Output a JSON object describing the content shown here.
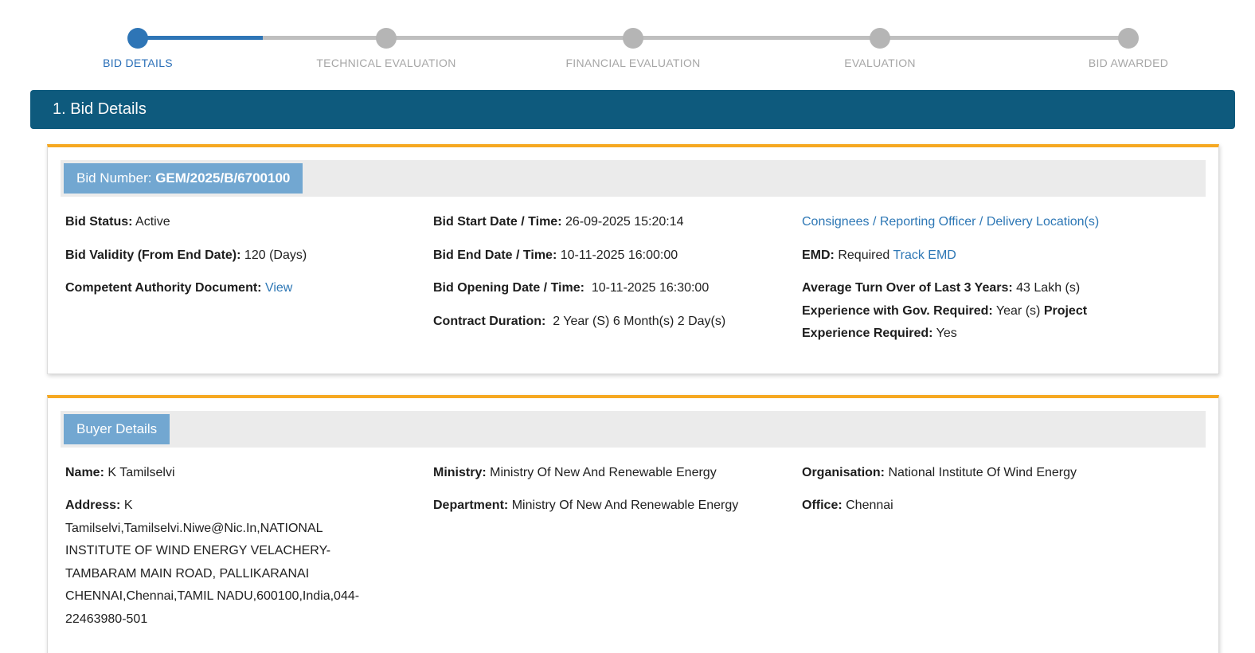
{
  "stepper": {
    "steps": [
      {
        "label": "BID DETAILS",
        "state": "active"
      },
      {
        "label": "TECHNICAL EVALUATION",
        "state": "inactive"
      },
      {
        "label": "FINANCIAL EVALUATION",
        "state": "inactive"
      },
      {
        "label": "EVALUATION",
        "state": "inactive"
      },
      {
        "label": "BID AWARDED",
        "state": "inactive"
      }
    ]
  },
  "section_header": {
    "title": "1. Bid Details"
  },
  "bid_card": {
    "badge_label": "Bid Number: ",
    "badge_value": "GEM/2025/B/6700100",
    "bid_status": {
      "label": "Bid Status:",
      "value": "Active"
    },
    "bid_validity": {
      "label": "Bid Validity (From End Date):",
      "value": "120 (Days)"
    },
    "competent_authority": {
      "label": "Competent Authority Document:",
      "link": "View"
    },
    "bid_start": {
      "label": "Bid Start Date / Time:",
      "value": "26-09-2025 15:20:14"
    },
    "bid_end": {
      "label": "Bid End Date / Time:",
      "value": "10-11-2025 16:00:00"
    },
    "bid_opening": {
      "label": "Bid Opening Date / Time:",
      "value": "10-11-2025 16:30:00"
    },
    "contract_duration": {
      "label": "Contract Duration:",
      "value": "2 Year (S) 6 Month(s) 2 Day(s)"
    },
    "consignees_link": "Consignees / Reporting Officer / Delivery Location(s)",
    "emd": {
      "label": "EMD:",
      "value": "Required",
      "link": "Track EMD"
    },
    "turnover": {
      "label": "Average Turn Over of Last 3 Years:",
      "value": "43 Lakh (s)"
    },
    "experience_gov": {
      "label": "Experience with Gov. Required:",
      "value": "Year (s)"
    },
    "project_experience": {
      "label": "Project Experience Required:",
      "value": "Yes"
    }
  },
  "buyer_card": {
    "badge_label": "Buyer Details",
    "name": {
      "label": "Name:",
      "value": "K Tamilselvi"
    },
    "address": {
      "label": "Address:",
      "value": "K Tamilselvi,Tamilselvi.Niwe@Nic.In,NATIONAL INSTITUTE OF WIND ENERGY VELACHERY-TAMBARAM MAIN ROAD, PALLIKARANAI CHENNAI,Chennai,TAMIL NADU,600100,India,044-22463980-501"
    },
    "ministry": {
      "label": "Ministry:",
      "value": "Ministry Of New And Renewable Energy"
    },
    "department": {
      "label": "Department:",
      "value": "Ministry Of New And Renewable Energy"
    },
    "organisation": {
      "label": "Organisation:",
      "value": "National Institute Of Wind Energy"
    },
    "office": {
      "label": "Office:",
      "value": "Chennai"
    }
  },
  "colors": {
    "accent_orange": "#f6a821",
    "section_bar_teal": "#0e5a7d",
    "badge_blue": "#72a7d1",
    "link_blue": "#2d77b5",
    "stepper_active_blue": "#2e75b6",
    "stepper_inactive_gray": "#b5b5b5"
  }
}
